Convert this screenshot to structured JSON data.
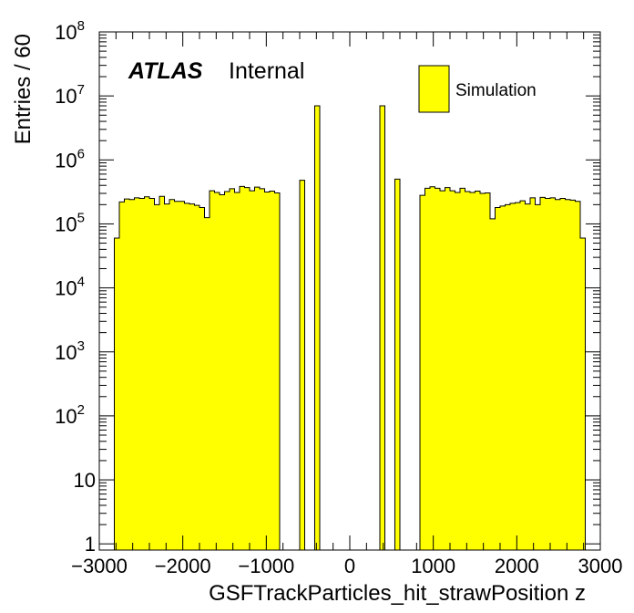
{
  "chart_data": {
    "type": "bar",
    "histogram": true,
    "xlabel": "GSFTrackParticles_hit_strawPosition z",
    "ylabel": "Entries / 60",
    "xlim": [
      -3000,
      3000
    ],
    "ylim": [
      0.8,
      100000000
    ],
    "yscale": "log",
    "bin_width": 60,
    "x_ticks": [
      -3000,
      -2000,
      -1000,
      0,
      1000,
      2000,
      3000
    ],
    "x_tick_labels": [
      "−3000",
      "−2000",
      "−1000",
      "0",
      "1000",
      "2000",
      "3000"
    ],
    "y_ticks": [
      {
        "value": 1,
        "base": "1",
        "exp": ""
      },
      {
        "value": 10,
        "base": "10",
        "exp": ""
      },
      {
        "value": 100,
        "base": "10",
        "exp": "2"
      },
      {
        "value": 1000,
        "base": "10",
        "exp": "3"
      },
      {
        "value": 10000,
        "base": "10",
        "exp": "4"
      },
      {
        "value": 100000,
        "base": "10",
        "exp": "5"
      },
      {
        "value": 1000000,
        "base": "10",
        "exp": "6"
      },
      {
        "value": 10000000,
        "base": "10",
        "exp": "7"
      },
      {
        "value": 100000000,
        "base": "10",
        "exp": "8"
      }
    ],
    "series": [
      {
        "name": "Simulation",
        "color": "#ffff00",
        "bins": [
          {
            "x": -2820,
            "y": 60000
          },
          {
            "x": -2760,
            "y": 220000
          },
          {
            "x": -2700,
            "y": 245000
          },
          {
            "x": -2640,
            "y": 240000
          },
          {
            "x": -2580,
            "y": 255000
          },
          {
            "x": -2520,
            "y": 250000
          },
          {
            "x": -2460,
            "y": 265000
          },
          {
            "x": -2400,
            "y": 250000
          },
          {
            "x": -2340,
            "y": 200000
          },
          {
            "x": -2280,
            "y": 270000
          },
          {
            "x": -2220,
            "y": 205000
          },
          {
            "x": -2160,
            "y": 240000
          },
          {
            "x": -2100,
            "y": 225000
          },
          {
            "x": -2040,
            "y": 225000
          },
          {
            "x": -1980,
            "y": 210000
          },
          {
            "x": -1920,
            "y": 205000
          },
          {
            "x": -1860,
            "y": 195000
          },
          {
            "x": -1800,
            "y": 180000
          },
          {
            "x": -1740,
            "y": 125000
          },
          {
            "x": -1680,
            "y": 330000
          },
          {
            "x": -1620,
            "y": 310000
          },
          {
            "x": -1560,
            "y": 285000
          },
          {
            "x": -1500,
            "y": 320000
          },
          {
            "x": -1440,
            "y": 355000
          },
          {
            "x": -1380,
            "y": 310000
          },
          {
            "x": -1320,
            "y": 385000
          },
          {
            "x": -1260,
            "y": 370000
          },
          {
            "x": -1200,
            "y": 330000
          },
          {
            "x": -1140,
            "y": 375000
          },
          {
            "x": -1080,
            "y": 355000
          },
          {
            "x": -1020,
            "y": 315000
          },
          {
            "x": -960,
            "y": 325000
          },
          {
            "x": -900,
            "y": 305000
          },
          {
            "x": -600,
            "y": 480000
          },
          {
            "x": -420,
            "y": 7000000
          },
          {
            "x": 360,
            "y": 7000000
          },
          {
            "x": 540,
            "y": 500000
          },
          {
            "x": 840,
            "y": 280000
          },
          {
            "x": 900,
            "y": 360000
          },
          {
            "x": 960,
            "y": 380000
          },
          {
            "x": 1020,
            "y": 360000
          },
          {
            "x": 1080,
            "y": 330000
          },
          {
            "x": 1140,
            "y": 370000
          },
          {
            "x": 1200,
            "y": 330000
          },
          {
            "x": 1260,
            "y": 310000
          },
          {
            "x": 1320,
            "y": 360000
          },
          {
            "x": 1380,
            "y": 320000
          },
          {
            "x": 1440,
            "y": 310000
          },
          {
            "x": 1500,
            "y": 325000
          },
          {
            "x": 1560,
            "y": 300000
          },
          {
            "x": 1620,
            "y": 305000
          },
          {
            "x": 1680,
            "y": 120000
          },
          {
            "x": 1740,
            "y": 180000
          },
          {
            "x": 1800,
            "y": 190000
          },
          {
            "x": 1860,
            "y": 200000
          },
          {
            "x": 1920,
            "y": 210000
          },
          {
            "x": 1980,
            "y": 215000
          },
          {
            "x": 2040,
            "y": 230000
          },
          {
            "x": 2100,
            "y": 205000
          },
          {
            "x": 2160,
            "y": 255000
          },
          {
            "x": 2220,
            "y": 200000
          },
          {
            "x": 2280,
            "y": 260000
          },
          {
            "x": 2340,
            "y": 250000
          },
          {
            "x": 2400,
            "y": 255000
          },
          {
            "x": 2460,
            "y": 240000
          },
          {
            "x": 2520,
            "y": 250000
          },
          {
            "x": 2580,
            "y": 240000
          },
          {
            "x": 2640,
            "y": 235000
          },
          {
            "x": 2700,
            "y": 225000
          },
          {
            "x": 2760,
            "y": 60000
          }
        ]
      }
    ],
    "annotations": {
      "atlas": "ATLAS",
      "internal": "Internal"
    },
    "legend": {
      "position": "top-right",
      "entries": [
        {
          "label": "Simulation",
          "color": "#ffff00"
        }
      ]
    }
  }
}
